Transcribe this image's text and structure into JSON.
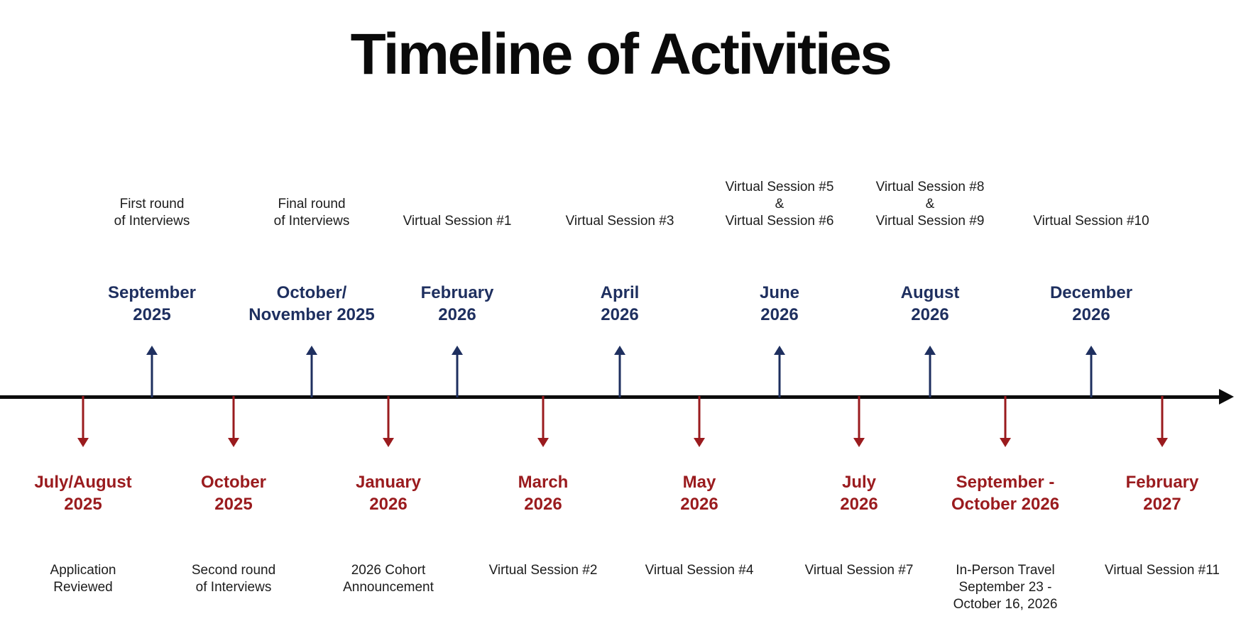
{
  "title": "Timeline of Activities",
  "colors": {
    "up_accent": "#1e2f5f",
    "down_accent": "#9a1b1e",
    "axis": "#0c0c0c",
    "text": "#1c1c1c"
  },
  "events": [
    {
      "direction": "down",
      "date": "July/August\n2025",
      "description": "Application\nReviewed"
    },
    {
      "direction": "up",
      "date": "September\n2025",
      "description": "First round\nof Interviews"
    },
    {
      "direction": "down",
      "date": "October\n2025",
      "description": "Second round\nof Interviews"
    },
    {
      "direction": "up",
      "date": "October/\nNovember 2025",
      "description": "Final round\nof Interviews"
    },
    {
      "direction": "down",
      "date": "January\n2026",
      "description": "2026 Cohort\nAnnouncement"
    },
    {
      "direction": "up",
      "date": "February\n2026",
      "description": "Virtual Session #1"
    },
    {
      "direction": "down",
      "date": "March\n2026",
      "description": "Virtual Session #2"
    },
    {
      "direction": "up",
      "date": "April\n2026",
      "description": "Virtual Session #3"
    },
    {
      "direction": "down",
      "date": "May\n2026",
      "description": "Virtual Session #4"
    },
    {
      "direction": "up",
      "date": "June\n2026",
      "description": "Virtual Session #5\n&\nVirtual Session #6"
    },
    {
      "direction": "down",
      "date": "July\n2026",
      "description": "Virtual Session #7"
    },
    {
      "direction": "up",
      "date": "August\n2026",
      "description": "Virtual Session #8\n&\nVirtual Session #9"
    },
    {
      "direction": "down",
      "date": "September -\nOctober 2026",
      "description": "In-Person Travel\nSeptember 23 -\nOctober 16, 2026"
    },
    {
      "direction": "up",
      "date": "December\n2026",
      "description": "Virtual Session #10"
    },
    {
      "direction": "down",
      "date": "February\n2027",
      "description": "Virtual Session #11"
    }
  ]
}
